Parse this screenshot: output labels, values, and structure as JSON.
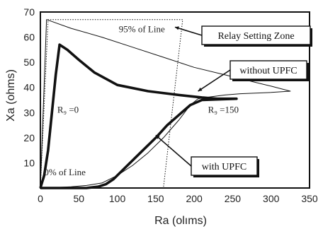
{
  "chart_data": {
    "type": "line",
    "xlabel": "Ra (olıms)",
    "ylabel": "Xa (ohms)",
    "xlim": [
      0,
      350
    ],
    "ylim": [
      0,
      70
    ],
    "x_ticks": [
      "0",
      "50",
      "100",
      "150",
      "200",
      "250",
      "300",
      "350"
    ],
    "y_ticks": [
      "10",
      "20",
      "30",
      "40",
      "50",
      "60",
      "70"
    ],
    "grid": "dotted",
    "series": [
      {
        "name": "without UPFC",
        "style": "thin",
        "x": [
          0,
          8,
          40,
          80,
          120,
          160,
          200,
          240,
          280,
          300,
          325,
          300,
          260,
          240,
          215,
          205,
          195,
          180,
          160,
          140,
          120,
          100,
          80,
          60,
          40,
          20,
          5,
          0
        ],
        "y": [
          0,
          67,
          63.5,
          60,
          56,
          52,
          48,
          45,
          42,
          40.5,
          38.5,
          38,
          37.5,
          37,
          36,
          35.5,
          33,
          27,
          20,
          14,
          9,
          5,
          2,
          1,
          0.5,
          0.2,
          0,
          0
        ]
      },
      {
        "name": "with UPFC",
        "style": "thick",
        "x": [
          0,
          5,
          10,
          15,
          20,
          25,
          35,
          50,
          70,
          100,
          140,
          180,
          210,
          230,
          255,
          210,
          195,
          180,
          165,
          150,
          130,
          110,
          95,
          85,
          75,
          60,
          40,
          20,
          0
        ],
        "y": [
          0,
          5,
          15,
          30,
          45,
          57,
          55,
          51,
          46,
          41,
          38.5,
          37,
          36,
          35.5,
          35.5,
          35,
          33,
          29,
          25,
          20,
          14,
          8,
          3.5,
          1.5,
          0.5,
          0,
          0,
          0,
          0
        ]
      },
      {
        "name": "Relay Setting Zone",
        "style": "dotted",
        "x": [
          0,
          10,
          170,
          185,
          160,
          140,
          0
        ],
        "y": [
          0,
          67,
          67,
          67,
          0,
          0,
          0
        ]
      }
    ],
    "annotations": [
      {
        "id": "line95",
        "text": "95% of Line",
        "x": 102,
        "y": 62
      },
      {
        "id": "rf0",
        "text": "R₉ =0",
        "x": 22,
        "y": 30
      },
      {
        "id": "rf150",
        "text": "R₉ =150",
        "x": 218,
        "y": 30
      },
      {
        "id": "line0",
        "text": "0% of Line",
        "x": 5,
        "y": 5
      }
    ],
    "callouts": [
      {
        "id": "relay",
        "text": "Relay Setting Zone",
        "target_x": 175,
        "target_y": 64
      },
      {
        "id": "without",
        "text": "without UPFC",
        "target_x": 205,
        "target_y": 38.5
      },
      {
        "id": "with",
        "text": "with UPFC",
        "target_x": 150,
        "target_y": 21
      }
    ]
  }
}
